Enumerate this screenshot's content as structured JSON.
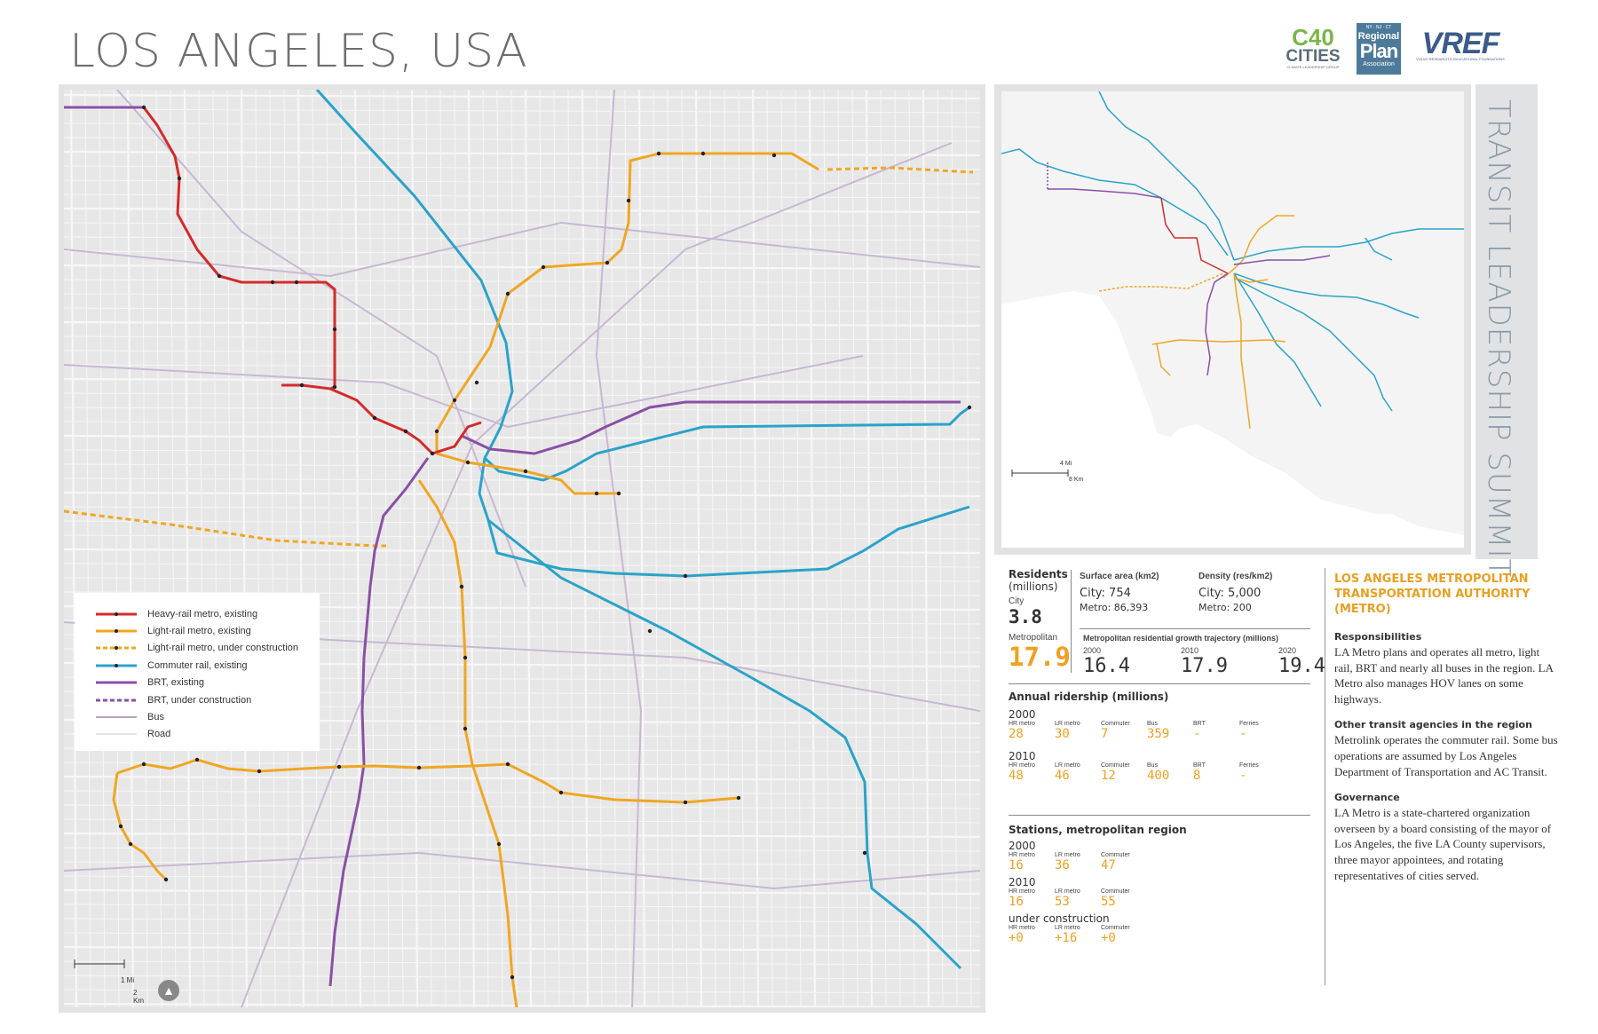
{
  "title": "LOS ANGELES, USA",
  "side_title": "TRANSIT LEADERSHIP SUMMIT",
  "logos": {
    "c40_big": "C40",
    "c40_mid": "CITIES",
    "c40_small": "CLIMATE LEADERSHIP GROUP",
    "rpa_states": "NY · NJ · CT",
    "rpa_line1": "Regional",
    "rpa_line2": "Plan",
    "rpa_line3": "Association",
    "vref_big": "VREF",
    "vref_small": "VOLVO RESEARCH & EDUCATIONAL FOUNDATIONS"
  },
  "colors": {
    "heavy_rail": "#d42a2a",
    "light_rail": "#f0a623",
    "commuter_rail": "#2aa3c9",
    "brt": "#8b4fa6",
    "bus": "#b7a3c6",
    "road": "#f6f6f6",
    "accent": "#e8a020"
  },
  "legend": [
    {
      "label": "Heavy-rail metro, existing",
      "style": "heavy"
    },
    {
      "label": "Light-rail metro, existing",
      "style": "light"
    },
    {
      "label": "Light-rail metro, under construction",
      "style": "light-dashed"
    },
    {
      "label": "Commuter rail, existing",
      "style": "commuter"
    },
    {
      "label": "BRT, existing",
      "style": "brt"
    },
    {
      "label": "BRT, under construction",
      "style": "brt-dashed"
    },
    {
      "label": "Bus",
      "style": "bus"
    },
    {
      "label": "Road",
      "style": "road"
    }
  ],
  "main_scale": {
    "mi": "1 Mi",
    "km": "2 Km"
  },
  "inset_scale": {
    "mi": "4 Mi",
    "km": "8 Km"
  },
  "stats": {
    "residents_label": "Residents",
    "residents_unit": "(millions)",
    "city_label": "City",
    "city_value": "3.8",
    "metro_label": "Metropolitan",
    "metro_value": "17.9",
    "surface_label": "Surface area (km2)",
    "surface_city": "City: 754",
    "surface_metro": "Metro: 86,393",
    "density_label": "Density (res/km2)",
    "density_city": "City: 5,000",
    "density_metro": "Metro: 200",
    "growth_label": "Metropolitan residential growth trajectory (millions)",
    "growth": [
      {
        "year": "2000",
        "value": "16.4"
      },
      {
        "year": "2010",
        "value": "17.9"
      },
      {
        "year": "2020",
        "value": "19.4"
      }
    ],
    "ridership_label": "Annual ridership (millions)",
    "ridership": [
      {
        "year": "2000",
        "items": [
          {
            "mode": "HR metro",
            "value": "28"
          },
          {
            "mode": "LR metro",
            "value": "30"
          },
          {
            "mode": "Commuter",
            "value": "7"
          },
          {
            "mode": "Bus",
            "value": "359"
          },
          {
            "mode": "BRT",
            "value": "-"
          },
          {
            "mode": "Ferries",
            "value": "-"
          }
        ]
      },
      {
        "year": "2010",
        "items": [
          {
            "mode": "HR metro",
            "value": "48"
          },
          {
            "mode": "LR metro",
            "value": "46"
          },
          {
            "mode": "Commuter",
            "value": "12"
          },
          {
            "mode": "Bus",
            "value": "400"
          },
          {
            "mode": "BRT",
            "value": "8"
          },
          {
            "mode": "Ferries",
            "value": "-"
          }
        ]
      }
    ],
    "stations_label": "Stations, metropolitan region",
    "stations": [
      {
        "year": "2000",
        "items": [
          {
            "mode": "HR metro",
            "value": "16"
          },
          {
            "mode": "LR metro",
            "value": "36"
          },
          {
            "mode": "Commuter",
            "value": "47"
          }
        ]
      },
      {
        "year": "2010",
        "items": [
          {
            "mode": "HR metro",
            "value": "16"
          },
          {
            "mode": "LR metro",
            "value": "53"
          },
          {
            "mode": "Commuter",
            "value": "55"
          }
        ]
      },
      {
        "year": "under construction",
        "items": [
          {
            "mode": "HR metro",
            "value": "+0"
          },
          {
            "mode": "LR metro",
            "value": "+16"
          },
          {
            "mode": "Commuter",
            "value": "+0"
          }
        ]
      }
    ]
  },
  "agency": {
    "title": "LOS ANGELES METROPOLITAN TRANSPORTATION AUTHORITY (METRO)",
    "resp_h": "Responsibilities",
    "resp_p": "LA Metro plans and operates all metro, light rail, BRT and nearly all buses in the region. LA Metro also manages HOV lanes on some highways.",
    "other_h": "Other transit agencies in the region",
    "other_p": "Metrolink operates the commuter rail. Some bus operations are assumed by Los Angeles Department of Transportation and AC Transit.",
    "gov_h": "Governance",
    "gov_p": "LA Metro is a state-chartered organization overseen by a board consisting of the mayor of Los Angeles, the five LA County supervisors, three mayor appointees, and rotating representatives of cities served."
  }
}
